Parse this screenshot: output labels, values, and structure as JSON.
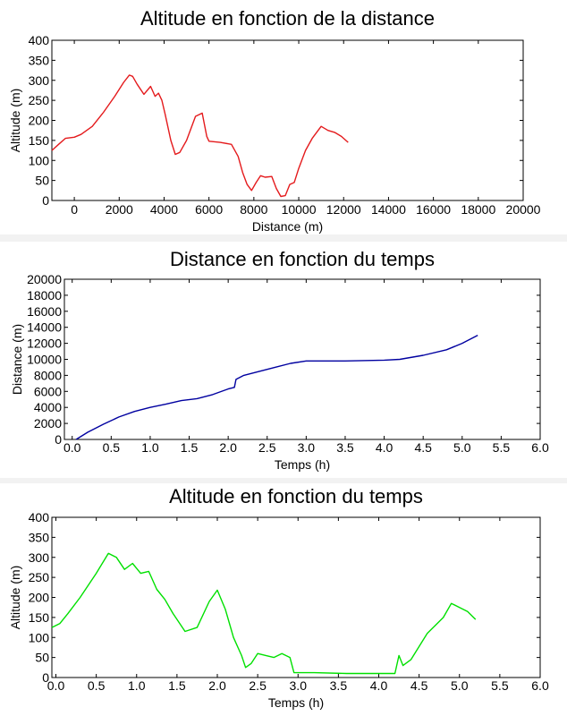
{
  "chart_data": [
    {
      "type": "line",
      "title": "Altitude en fonction de la distance",
      "xlabel": "Distance (m)",
      "ylabel": "Altitude (m)",
      "xlim": [
        -1000,
        20000
      ],
      "ylim": [
        0,
        400
      ],
      "xticks": [
        0,
        2000,
        4000,
        6000,
        8000,
        10000,
        12000,
        14000,
        16000,
        18000,
        20000
      ],
      "yticks": [
        0,
        50,
        100,
        150,
        200,
        250,
        300,
        350,
        400
      ],
      "color": "#e41a1c",
      "series": [
        {
          "x": [
            -1000,
            -700,
            -400,
            0,
            300,
            800,
            1300,
            1800,
            2200,
            2450,
            2600,
            2800,
            3100,
            3400,
            3600,
            3750,
            3900,
            4050,
            4300,
            4500,
            4700,
            5000,
            5400,
            5700,
            5900,
            6000,
            6500,
            7000,
            7300,
            7500,
            7700,
            7900,
            8100,
            8300,
            8500,
            8800,
            9000,
            9200,
            9400,
            9600,
            9800,
            10000,
            10300,
            10600,
            11000,
            11300,
            11600,
            11900,
            12200
          ],
          "y": [
            125,
            140,
            155,
            158,
            165,
            185,
            220,
            260,
            295,
            313,
            310,
            290,
            265,
            285,
            260,
            268,
            250,
            215,
            150,
            115,
            120,
            150,
            210,
            218,
            160,
            148,
            145,
            140,
            110,
            70,
            40,
            25,
            45,
            62,
            58,
            60,
            30,
            10,
            12,
            40,
            45,
            80,
            125,
            155,
            185,
            175,
            170,
            160,
            145
          ]
        }
      ]
    },
    {
      "type": "line",
      "title": "Distance en fonction du temps",
      "xlabel": "Temps (h)",
      "ylabel": "Distance (m)",
      "xlim": [
        -0.1,
        6.0
      ],
      "ylim": [
        0,
        20000
      ],
      "xticks": [
        0.0,
        0.5,
        1.0,
        1.5,
        2.0,
        2.5,
        3.0,
        3.5,
        4.0,
        4.5,
        5.0,
        5.5,
        6.0
      ],
      "yticks": [
        0,
        2000,
        4000,
        6000,
        8000,
        10000,
        12000,
        14000,
        16000,
        18000,
        20000
      ],
      "color": "#0000a0",
      "series": [
        {
          "x": [
            0.05,
            0.2,
            0.4,
            0.6,
            0.8,
            1.0,
            1.2,
            1.4,
            1.6,
            1.8,
            2.0,
            2.08,
            2.1,
            2.2,
            2.4,
            2.6,
            2.8,
            3.0,
            3.5,
            4.0,
            4.2,
            4.5,
            4.8,
            5.0,
            5.2
          ],
          "y": [
            0,
            900,
            1900,
            2800,
            3500,
            4000,
            4400,
            4850,
            5100,
            5600,
            6300,
            6500,
            7500,
            8000,
            8500,
            9000,
            9500,
            9800,
            9800,
            9900,
            10000,
            10500,
            11200,
            12000,
            13000
          ]
        }
      ]
    },
    {
      "type": "line",
      "title": "Altitude en fonction du temps",
      "xlabel": "Temps (h)",
      "ylabel": "Altitude (m)",
      "xlim": [
        -0.05,
        6.0
      ],
      "ylim": [
        0,
        400
      ],
      "xticks": [
        0.0,
        0.5,
        1.0,
        1.5,
        2.0,
        2.5,
        3.0,
        3.5,
        4.0,
        4.5,
        5.0,
        5.5,
        6.0
      ],
      "yticks": [
        0,
        50,
        100,
        150,
        200,
        250,
        300,
        350,
        400
      ],
      "color": "#00e000",
      "series": [
        {
          "x": [
            -0.05,
            0.05,
            0.15,
            0.3,
            0.5,
            0.65,
            0.75,
            0.85,
            0.95,
            1.05,
            1.15,
            1.25,
            1.35,
            1.45,
            1.6,
            1.75,
            1.9,
            2.0,
            2.1,
            2.2,
            2.3,
            2.35,
            2.42,
            2.5,
            2.6,
            2.7,
            2.8,
            2.9,
            2.95,
            3.2,
            3.6,
            4.0,
            4.2,
            4.25,
            4.3,
            4.4,
            4.6,
            4.8,
            4.9,
            5.0,
            5.1,
            5.2
          ],
          "y": [
            125,
            135,
            160,
            200,
            260,
            310,
            300,
            270,
            285,
            260,
            265,
            220,
            195,
            160,
            115,
            125,
            190,
            218,
            170,
            100,
            55,
            25,
            35,
            60,
            55,
            50,
            60,
            50,
            12,
            12,
            10,
            10,
            10,
            55,
            30,
            45,
            110,
            150,
            185,
            175,
            165,
            145
          ]
        }
      ]
    }
  ]
}
